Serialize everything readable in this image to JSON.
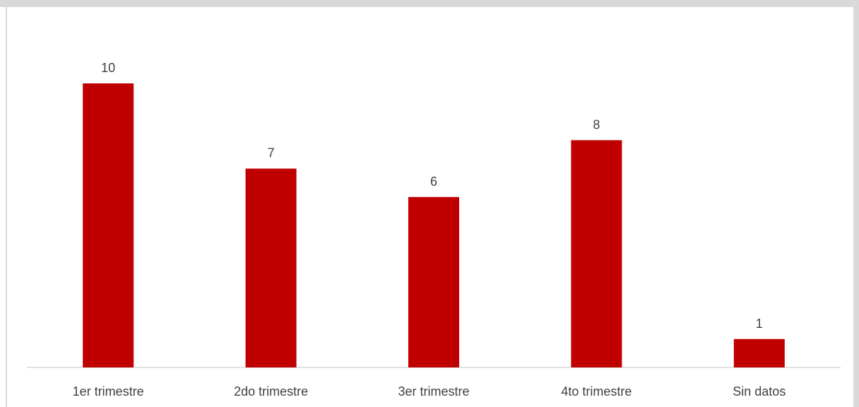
{
  "chart_data": {
    "type": "bar",
    "categories": [
      "1er trimestre",
      "2do trimestre",
      "3er trimestre",
      "4to trimestre",
      "Sin datos"
    ],
    "values": [
      10,
      7,
      6,
      8,
      1
    ],
    "data_labels": [
      "10",
      "7",
      "6",
      "8",
      "1"
    ],
    "title": "",
    "xlabel": "",
    "ylabel": "",
    "ylim": [
      0,
      10
    ],
    "grid": false,
    "legend": "none",
    "bar_color": "#c00000",
    "label_color": "#404040",
    "axis_color": "#d9d9d9"
  }
}
